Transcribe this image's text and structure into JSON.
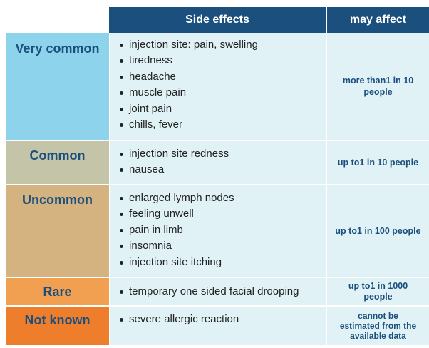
{
  "header": {
    "side_effects": "Side effects",
    "may_affect": "may affect"
  },
  "rows": [
    {
      "category": "Very common",
      "color": "#8dd3ec",
      "effects": [
        "injection site: pain, swelling",
        "tiredness",
        "headache",
        "muscle pain",
        "joint pain",
        "chills, fever"
      ],
      "frequency": "more than1 in 10 people"
    },
    {
      "category": "Common",
      "color": "#c4c4a8",
      "effects": [
        "injection site redness",
        "nausea"
      ],
      "frequency": "up to1 in 10 people"
    },
    {
      "category": "Uncommon",
      "color": "#d4b381",
      "effects": [
        "enlarged lymph nodes",
        "feeling unwell",
        "pain in limb",
        "insomnia",
        "injection site itching"
      ],
      "frequency": "up to1 in 100 people"
    },
    {
      "category": "Rare",
      "color": "#f0a050",
      "effects": [
        "temporary one sided facial drooping"
      ],
      "frequency": "up to1 in 1000 people"
    },
    {
      "category": "Not known",
      "color": "#ee7d2c",
      "effects": [
        "severe allergic reaction"
      ],
      "frequency": "cannot be estimated from the available data"
    }
  ]
}
